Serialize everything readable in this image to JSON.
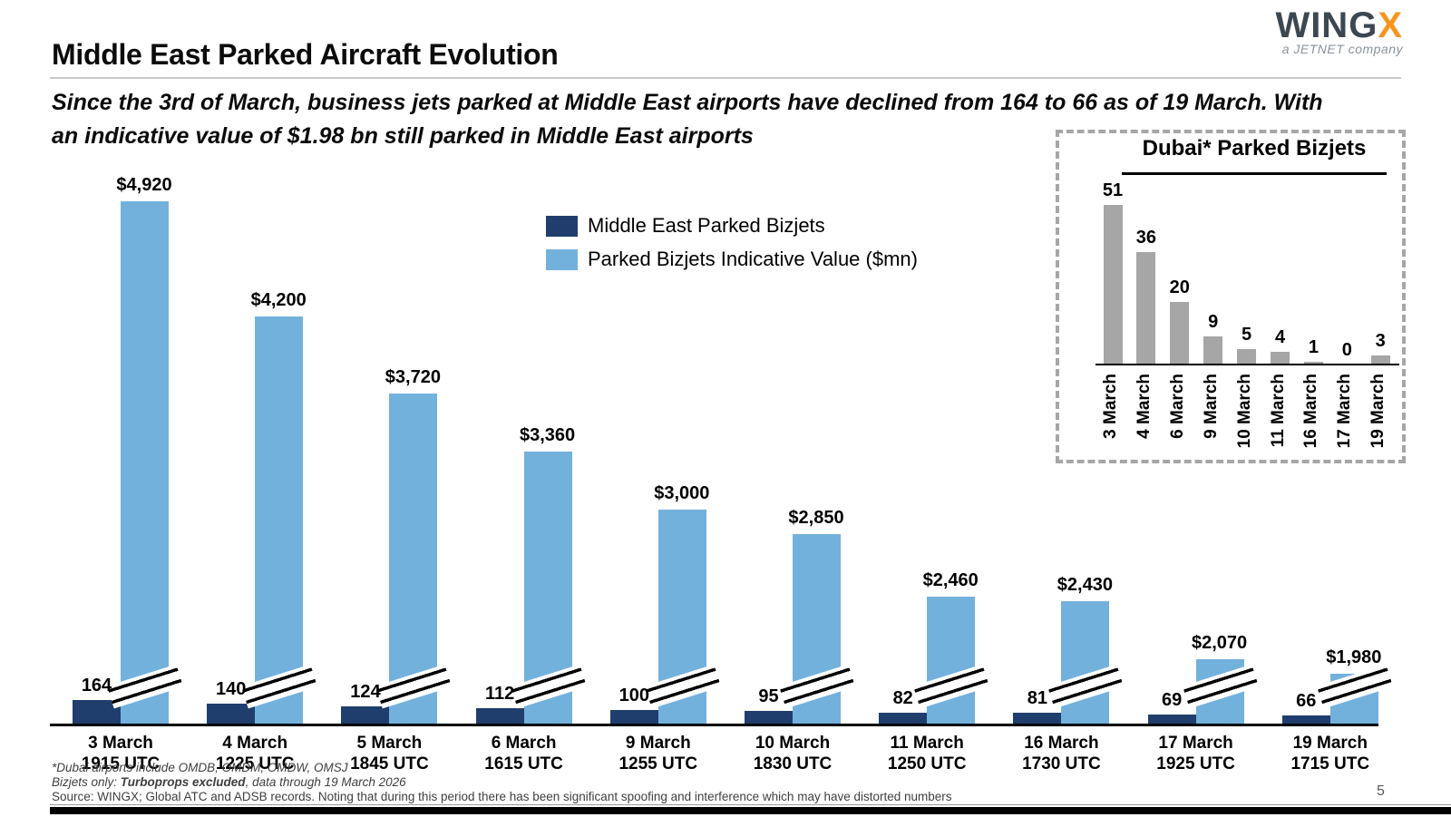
{
  "header": {
    "title": "Middle East Parked Aircraft Evolution",
    "subtitle_line1": "Since the 3rd of March, business jets parked at Middle East airports have declined from 164 to 66 as of 19 March. With",
    "subtitle_line2": "an indicative value of $1.98 bn still parked in Middle East airports",
    "logo": {
      "part1": "WING",
      "part2": "X",
      "tagline": "a JETNET company"
    }
  },
  "legend": {
    "items": [
      {
        "label": "Middle East Parked Bizjets",
        "color": "#1f3e6d"
      },
      {
        "label": "Parked Bizjets Indicative Value ($mn)",
        "color": "#73b1dd"
      }
    ]
  },
  "chart_data": [
    {
      "type": "bar",
      "name": "middle-east-parked-aircraft",
      "title": "",
      "categories": [
        "3 March",
        "4 March",
        "5 March",
        "6 March",
        "9 March",
        "10 March",
        "11 March",
        "16 March",
        "17 March",
        "19 March"
      ],
      "times_utc": [
        "1915 UTC",
        "1225 UTC",
        "1845 UTC",
        "1615 UTC",
        "1255 UTC",
        "1830 UTC",
        "1250 UTC",
        "1730 UTC",
        "1925 UTC",
        "1715 UTC"
      ],
      "series": [
        {
          "name": "Middle East Parked Bizjets",
          "values": [
            164,
            140,
            124,
            112,
            100,
            95,
            82,
            81,
            69,
            66
          ],
          "color": "#1f3e6d"
        },
        {
          "name": "Parked Bizjets Indicative Value ($mn)",
          "values": [
            4920,
            4200,
            3720,
            3360,
            3000,
            2850,
            2460,
            2430,
            2070,
            1980
          ],
          "labels": [
            "$4,920",
            "$4,200",
            "$3,720",
            "$3,360",
            "$3,000",
            "$2,850",
            "$2,460",
            "$2,430",
            "$2,070",
            "$1,980"
          ],
          "color": "#73b1dd",
          "axis_break": true
        }
      ],
      "grid": false,
      "legend_position": "top-center",
      "ylim": [
        0,
        5000
      ]
    },
    {
      "type": "bar",
      "name": "dubai-parked-bizjets",
      "title": "Dubai* Parked Bizjets",
      "categories": [
        "3 March",
        "4 March",
        "6 March",
        "9 March",
        "10 March",
        "11 March",
        "16 March",
        "17 March",
        "19 March"
      ],
      "values": [
        51,
        36,
        20,
        9,
        5,
        4,
        1,
        0,
        3
      ],
      "color": "#a6a6a6",
      "grid": false,
      "ylim": [
        0,
        55
      ]
    }
  ],
  "footer": {
    "note1": "*Dubai airports include OMDB, OMDM, OMDW, OMSJ",
    "note2_prefix": "Bizjets only: ",
    "note2_bold": "Turboprops excluded",
    "note2_suffix": ", data through 19 March 2026",
    "source": "Source: WINGX; Global ATC and ADSB records. Noting that during this period there has been significant spoofing and interference which may have distorted numbers",
    "page_number": "5"
  }
}
